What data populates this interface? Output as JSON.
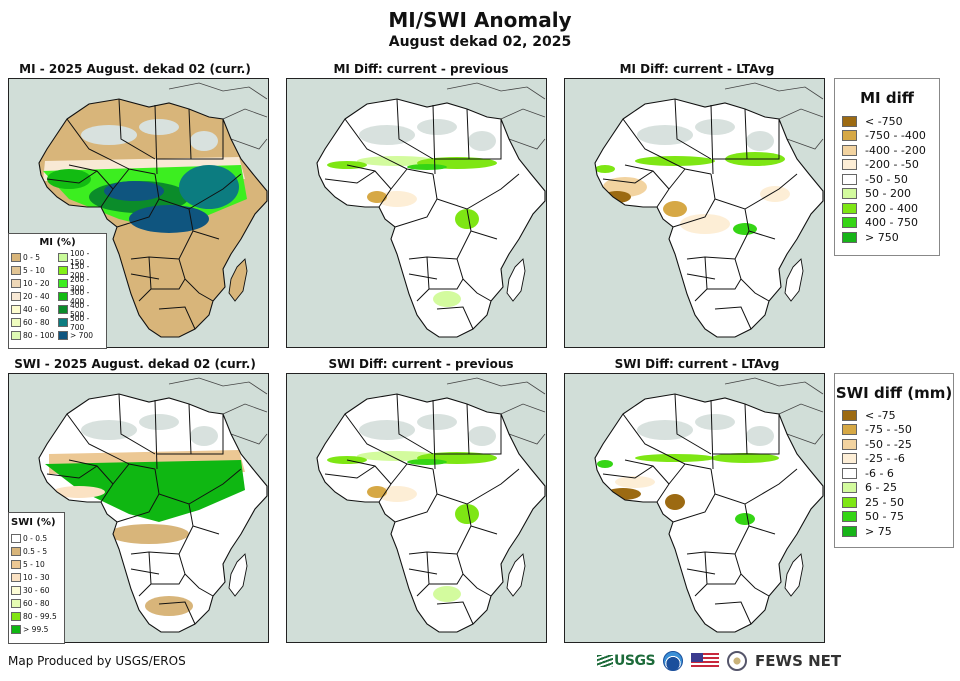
{
  "header": {
    "title": "MI/SWI Anomaly",
    "subtitle": "August dekad 02, 2025"
  },
  "panels": [
    {
      "id": "mi-curr",
      "title": "MI - 2025 August. dekad 02 (curr.)",
      "variant": "mi-curr"
    },
    {
      "id": "mi-diff-prev",
      "title": "MI Diff: current - previous",
      "variant": "diff-prev"
    },
    {
      "id": "mi-diff-lta",
      "title": "MI Diff: current - LTAvg",
      "variant": "mi-diff-lta"
    },
    {
      "id": "swi-curr",
      "title": "SWI - 2025 August. dekad 02 (curr.)",
      "variant": "swi-curr"
    },
    {
      "id": "swi-diff-prev",
      "title": "SWI Diff: current - previous",
      "variant": "diff-prev"
    },
    {
      "id": "swi-diff-lta",
      "title": "SWI Diff: current - LTAvg",
      "variant": "swi-diff-lta"
    }
  ],
  "legends": {
    "mi_diff": {
      "title": "MI diff",
      "items": [
        {
          "label": "< -750",
          "color": "#9c6a12"
        },
        {
          "label": "-750 - -400",
          "color": "#d6a845"
        },
        {
          "label": "-400 - -200",
          "color": "#f2d3a0"
        },
        {
          "label": "-200 - -50",
          "color": "#fdeed6"
        },
        {
          "label": "-50 - 50",
          "color": "#ffffff"
        },
        {
          "label": "50 - 200",
          "color": "#d3fb9e"
        },
        {
          "label": "200 - 400",
          "color": "#7ee614"
        },
        {
          "label": "400 - 750",
          "color": "#35d515"
        },
        {
          "label": "> 750",
          "color": "#17b418"
        }
      ]
    },
    "swi_diff": {
      "title": "SWI diff (mm)",
      "items": [
        {
          "label": "< -75",
          "color": "#9c6a12"
        },
        {
          "label": "-75 - -50",
          "color": "#d6a845"
        },
        {
          "label": "-50 - -25",
          "color": "#f2d3a0"
        },
        {
          "label": "-25 - -6",
          "color": "#fdeed6"
        },
        {
          "label": "-6 - 6",
          "color": "#ffffff"
        },
        {
          "label": "6 - 25",
          "color": "#d3fb9e"
        },
        {
          "label": "25 - 50",
          "color": "#7ee614"
        },
        {
          "label": "50 - 75",
          "color": "#35d515"
        },
        {
          "label": "> 75",
          "color": "#17b418"
        }
      ]
    },
    "mi_pct": {
      "title": "MI (%)",
      "col1": [
        {
          "label": "0 - 5",
          "color": "#d8b57a"
        },
        {
          "label": "5 - 10",
          "color": "#e2c594"
        },
        {
          "label": "10 - 20",
          "color": "#efd8b8"
        },
        {
          "label": "20 - 40",
          "color": "#f8e9d5"
        },
        {
          "label": "40 - 60",
          "color": "#fdfccf"
        },
        {
          "label": "60 - 80",
          "color": "#effcbf"
        },
        {
          "label": "80 - 100",
          "color": "#def9b4"
        }
      ],
      "col2": [
        {
          "label": "100 - 150",
          "color": "#c9fb99"
        },
        {
          "label": "150 - 200",
          "color": "#82f116"
        },
        {
          "label": "200 - 300",
          "color": "#3cee20"
        },
        {
          "label": "300 - 400",
          "color": "#12bb12"
        },
        {
          "label": "400 - 500",
          "color": "#0b8c2a"
        },
        {
          "label": "500 - 700",
          "color": "#0c7c80"
        },
        {
          "label": "> 700",
          "color": "#0f557f"
        }
      ]
    },
    "swi_pct": {
      "title": "SWI (%)",
      "items": [
        {
          "label": "0 - 0.5",
          "color": "#ffffff"
        },
        {
          "label": "0.5 - 5",
          "color": "#d8b57a"
        },
        {
          "label": "5 - 10",
          "color": "#ecc894"
        },
        {
          "label": "10 - 30",
          "color": "#fbe2c3"
        },
        {
          "label": "30 - 60",
          "color": "#fdfcd6"
        },
        {
          "label": "60 - 80",
          "color": "#e6fcb4"
        },
        {
          "label": "80 - 99.5",
          "color": "#82e514"
        },
        {
          "label": "> 99.5",
          "color": "#0fb712"
        }
      ]
    }
  },
  "map_colors": {
    "ocean": "#d1ded8",
    "nodata": "#d8e1de"
  },
  "footer": {
    "credit": "Map Produced by USGS/EROS",
    "logos": [
      "USGS",
      "NOAA",
      "US flag",
      "US Department of State seal",
      "FEWS NET"
    ],
    "usgs_label": "USGS",
    "fews_label": "FEWS NET"
  }
}
